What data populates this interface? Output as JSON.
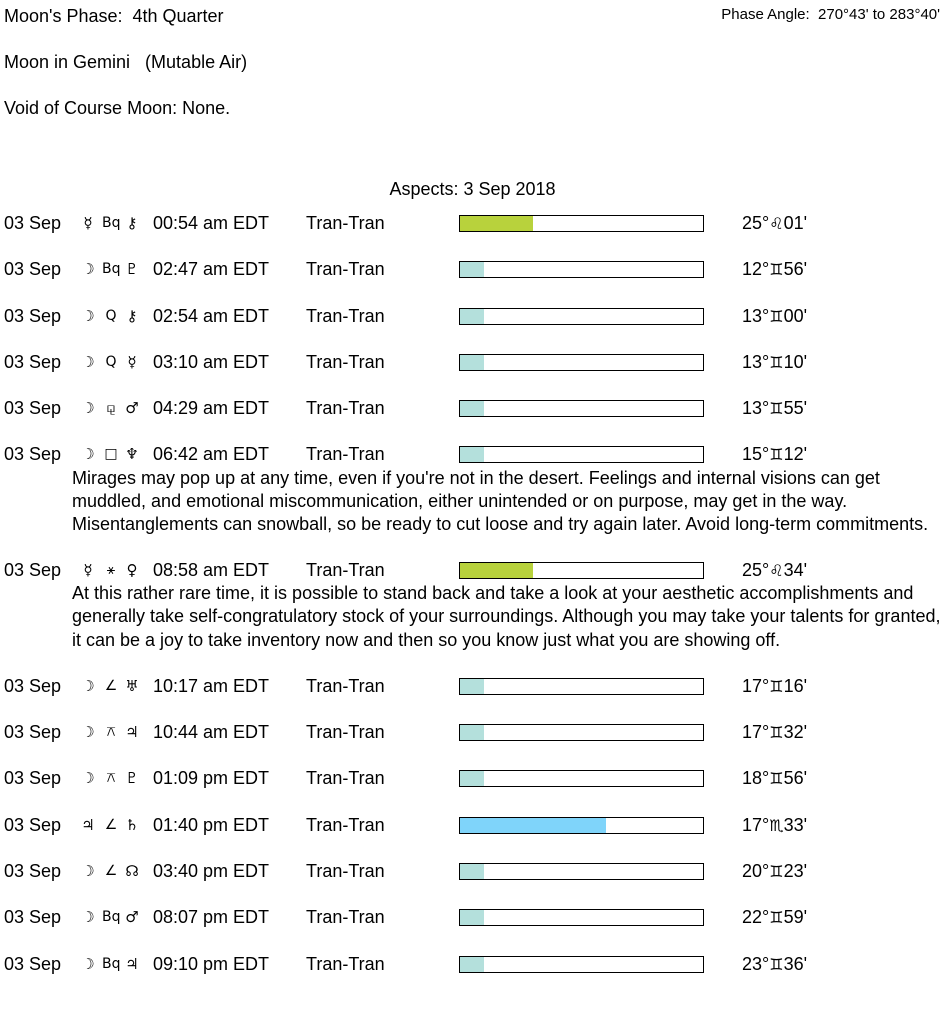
{
  "header": {
    "moon_phase": "Moon's Phase:  4th Quarter",
    "moon_sign": "Moon in Gemini   (Mutable Air)",
    "void_of_course": "Void of Course Moon: None.",
    "phase_angle": "Phase Angle:  270°43' to 283°40'"
  },
  "aspects": {
    "title": "Aspects: 3 Sep 2018",
    "colors": {
      "green": "#b8d23c",
      "teal": "#b4e0dc",
      "blue": "#7fd4fa"
    },
    "rows": [
      {
        "date": "03 Sep",
        "p1": "☿",
        "aspect": "Bq",
        "p2": "⚷",
        "time": "00:54 am EDT",
        "type": "Tran-Tran",
        "strength_pct": 30,
        "color": "green",
        "deg": "25°",
        "sign": "♌",
        "min": "01'"
      },
      {
        "date": "03 Sep",
        "p1": "☽",
        "aspect": "Bq",
        "p2": "♇",
        "time": "02:47 am EDT",
        "type": "Tran-Tran",
        "strength_pct": 10,
        "color": "teal",
        "deg": "12°",
        "sign": "♊",
        "min": "56'"
      },
      {
        "date": "03 Sep",
        "p1": "☽",
        "aspect": "Q",
        "p2": "⚷",
        "time": "02:54 am EDT",
        "type": "Tran-Tran",
        "strength_pct": 10,
        "color": "teal",
        "deg": "13°",
        "sign": "♊",
        "min": "00'"
      },
      {
        "date": "03 Sep",
        "p1": "☽",
        "aspect": "Q",
        "p2": "☿",
        "time": "03:10 am EDT",
        "type": "Tran-Tran",
        "strength_pct": 10,
        "color": "teal",
        "deg": "13°",
        "sign": "♊",
        "min": "10'"
      },
      {
        "date": "03 Sep",
        "p1": "☽",
        "aspect": "⚼",
        "p2": "♂",
        "time": "04:29 am EDT",
        "type": "Tran-Tran",
        "strength_pct": 10,
        "color": "teal",
        "deg": "13°",
        "sign": "♊",
        "min": "55'"
      },
      {
        "date": "03 Sep",
        "p1": "☽",
        "aspect": "□",
        "p2": "♆",
        "time": "06:42 am EDT",
        "type": "Tran-Tran",
        "strength_pct": 10,
        "color": "teal",
        "deg": "15°",
        "sign": "♊",
        "min": "12'",
        "description": "Mirages may pop up at any time, even if you're not in the desert. Feelings and internal visions can get muddled, and emotional miscommunication, either unintended or on purpose, may get in the way. Misentanglements can snowball, so be ready to cut loose and try again later. Avoid long-term commitments."
      },
      {
        "date": "03 Sep",
        "p1": "☿",
        "aspect": "⚹",
        "p2": "♀",
        "time": "08:58 am EDT",
        "type": "Tran-Tran",
        "strength_pct": 30,
        "color": "green",
        "deg": "25°",
        "sign": "♌",
        "min": "34'",
        "description": "At this rather rare time, it is possible to stand back and take a look at your aesthetic accomplishments and generally take self-congratulatory stock of your surroundings. Although you may take your talents for granted, it can be a joy to take inventory now and then so you know just what you are showing off."
      },
      {
        "date": "03 Sep",
        "p1": "☽",
        "aspect": "∠",
        "p2": "♅",
        "time": "10:17 am EDT",
        "type": "Tran-Tran",
        "strength_pct": 10,
        "color": "teal",
        "deg": "17°",
        "sign": "♊",
        "min": "16'"
      },
      {
        "date": "03 Sep",
        "p1": "☽",
        "aspect": "⚻",
        "p2": "♃",
        "time": "10:44 am EDT",
        "type": "Tran-Tran",
        "strength_pct": 10,
        "color": "teal",
        "deg": "17°",
        "sign": "♊",
        "min": "32'"
      },
      {
        "date": "03 Sep",
        "p1": "☽",
        "aspect": "⚻",
        "p2": "♇",
        "time": "01:09 pm EDT",
        "type": "Tran-Tran",
        "strength_pct": 10,
        "color": "teal",
        "deg": "18°",
        "sign": "♊",
        "min": "56'"
      },
      {
        "date": "03 Sep",
        "p1": "♃",
        "aspect": "∠",
        "p2": "♄",
        "time": "01:40 pm EDT",
        "type": "Tran-Tran",
        "strength_pct": 60,
        "color": "blue",
        "deg": "17°",
        "sign": "♏",
        "min": "33'"
      },
      {
        "date": "03 Sep",
        "p1": "☽",
        "aspect": "∠",
        "p2": "☊",
        "time": "03:40 pm EDT",
        "type": "Tran-Tran",
        "strength_pct": 10,
        "color": "teal",
        "deg": "20°",
        "sign": "♊",
        "min": "23'"
      },
      {
        "date": "03 Sep",
        "p1": "☽",
        "aspect": "Bq",
        "p2": "♂",
        "time": "08:07 pm EDT",
        "type": "Tran-Tran",
        "strength_pct": 10,
        "color": "teal",
        "deg": "22°",
        "sign": "♊",
        "min": "59'"
      },
      {
        "date": "03 Sep",
        "p1": "☽",
        "aspect": "Bq",
        "p2": "♃",
        "time": "09:10 pm EDT",
        "type": "Tran-Tran",
        "strength_pct": 10,
        "color": "teal",
        "deg": "23°",
        "sign": "♊",
        "min": "36'"
      }
    ]
  }
}
